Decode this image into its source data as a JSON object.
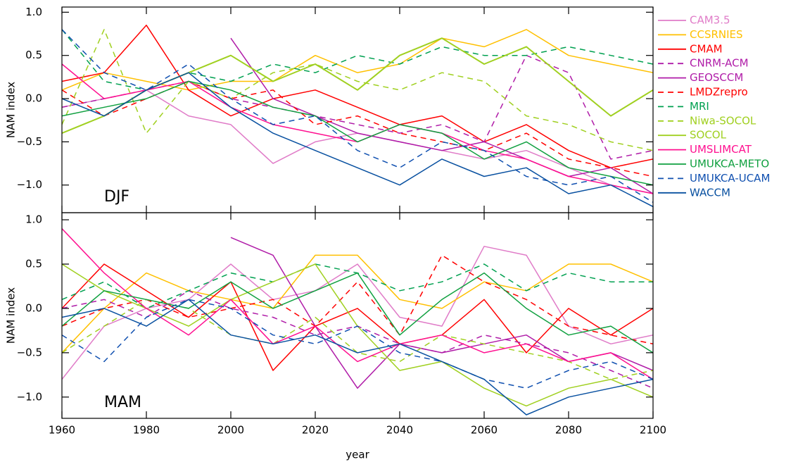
{
  "chart_data": [
    {
      "type": "line",
      "ylabel": "NAM index",
      "panel_label": "DJF",
      "xlim": [
        1960,
        2100
      ],
      "ylim": [
        -1.32,
        1.06
      ],
      "yticks": [
        {
          "value": -1,
          "label": "−1.0"
        },
        {
          "value": -0.5,
          "label": "−0.5"
        },
        {
          "value": 0,
          "label": "0.0"
        },
        {
          "value": 0.5,
          "label": "0.5"
        },
        {
          "value": 1,
          "label": "1.0"
        }
      ],
      "legend": "outside-right",
      "x": [
        1960,
        1970,
        1980,
        1990,
        2000,
        2010,
        2020,
        2030,
        2040,
        2050,
        2060,
        2070,
        2080,
        2090,
        2100
      ],
      "series": [
        {
          "name": "CAM3.5",
          "color": "#e07cc8",
          "dashed": false,
          "values": [
            -0.1,
            0.0,
            0.1,
            -0.2,
            -0.3,
            -0.75,
            -0.5,
            -0.4,
            -0.5,
            -0.6,
            -0.7,
            -0.6,
            -0.8,
            -1.0,
            -1.1
          ]
        },
        {
          "name": "CCSRNIES",
          "color": "#ffc000",
          "dashed": false,
          "values": [
            0.1,
            0.3,
            0.2,
            0.1,
            0.2,
            0.2,
            0.5,
            0.3,
            0.4,
            0.7,
            0.6,
            0.8,
            0.5,
            0.4,
            0.3
          ]
        },
        {
          "name": "CMAM",
          "color": "#ff0000",
          "dashed": false,
          "values": [
            0.2,
            0.3,
            0.85,
            0.1,
            -0.2,
            0.0,
            0.1,
            -0.1,
            -0.3,
            -0.2,
            -0.5,
            -0.3,
            -0.6,
            -0.8,
            -0.7
          ]
        },
        {
          "name": "CNRM-ACM",
          "color": "#b01ca8",
          "dashed": true,
          "values": [
            -0.1,
            0.0,
            0.1,
            0.2,
            0.0,
            -0.1,
            -0.2,
            -0.3,
            -0.4,
            -0.3,
            -0.5,
            0.5,
            0.3,
            -0.7,
            -0.6
          ]
        },
        {
          "name": "GEOSCCM",
          "color": "#b01ca8",
          "dashed": false,
          "values": [
            null,
            null,
            null,
            null,
            0.7,
            0.0,
            -0.2,
            -0.4,
            -0.5,
            -0.6,
            -0.5,
            -0.7,
            -0.9,
            -0.8,
            -1.1
          ]
        },
        {
          "name": "LMDZrepro",
          "color": "#ff0000",
          "dashed": true,
          "values": [
            0.1,
            -0.2,
            0.0,
            0.2,
            0.0,
            0.1,
            -0.3,
            -0.2,
            -0.4,
            -0.5,
            -0.6,
            -0.4,
            -0.7,
            -0.8,
            -0.9
          ]
        },
        {
          "name": "MRI",
          "color": "#00a050",
          "dashed": true,
          "values": [
            0.8,
            0.2,
            0.1,
            0.3,
            0.2,
            0.4,
            0.3,
            0.5,
            0.4,
            0.6,
            0.5,
            0.5,
            0.6,
            0.5,
            0.4
          ]
        },
        {
          "name": "Niwa-SOCOL",
          "color": "#a0d020",
          "dashed": true,
          "values": [
            -0.3,
            0.8,
            -0.4,
            0.2,
            0.0,
            0.3,
            0.4,
            0.2,
            0.1,
            0.3,
            0.2,
            -0.2,
            -0.3,
            -0.5,
            -0.6
          ]
        },
        {
          "name": "SOCOL",
          "color": "#a0d020",
          "dashed": false,
          "values": [
            -0.4,
            -0.2,
            0.1,
            0.3,
            0.5,
            0.2,
            0.4,
            0.1,
            0.5,
            0.7,
            0.4,
            0.6,
            0.2,
            -0.2,
            0.1
          ]
        },
        {
          "name": "UMSLIMCAT",
          "color": "#ff1090",
          "dashed": false,
          "values": [
            0.4,
            0.0,
            0.1,
            0.2,
            -0.1,
            -0.3,
            -0.4,
            -0.5,
            -0.3,
            -0.4,
            -0.6,
            -0.7,
            -0.9,
            -1.0,
            -1.1
          ]
        },
        {
          "name": "UMUKCA-METO",
          "color": "#10a040",
          "dashed": false,
          "values": [
            -0.2,
            -0.1,
            0.0,
            0.2,
            0.1,
            -0.1,
            -0.2,
            -0.5,
            -0.3,
            -0.4,
            -0.7,
            -0.5,
            -0.8,
            -0.9,
            -1.0
          ]
        },
        {
          "name": "UMUKCA-UCAM",
          "color": "#1050b0",
          "dashed": true,
          "values": [
            0.8,
            0.3,
            0.1,
            0.4,
            0.0,
            -0.3,
            -0.2,
            -0.6,
            -0.8,
            -0.5,
            -0.6,
            -0.9,
            -1.0,
            -0.9,
            -1.2
          ]
        },
        {
          "name": "WACCM",
          "color": "#0850a0",
          "dashed": false,
          "values": [
            0.0,
            -0.2,
            0.1,
            0.3,
            -0.1,
            -0.4,
            -0.6,
            -0.8,
            -1.0,
            -0.7,
            -0.9,
            -0.8,
            -1.1,
            -1.0,
            -1.25
          ]
        }
      ]
    },
    {
      "type": "line",
      "ylabel": "NAM index",
      "panel_label": "MAM",
      "xlabel": "year",
      "xlim": [
        1960,
        2100
      ],
      "ylim": [
        -1.24,
        1.08
      ],
      "xticks": [
        1960,
        1980,
        2000,
        2020,
        2040,
        2060,
        2080,
        2100
      ],
      "yticks": [
        {
          "value": -1,
          "label": "−1.0"
        },
        {
          "value": -0.5,
          "label": "−0.5"
        },
        {
          "value": 0,
          "label": "0.0"
        },
        {
          "value": 0.5,
          "label": "0.5"
        },
        {
          "value": 1,
          "label": "1.0"
        }
      ],
      "x": [
        1960,
        1970,
        1980,
        1990,
        2000,
        2010,
        2020,
        2030,
        2040,
        2050,
        2060,
        2070,
        2080,
        2090,
        2100
      ],
      "series": [
        {
          "color": "#e07cc8",
          "dashed": false,
          "values": [
            -0.8,
            -0.2,
            0.0,
            0.1,
            0.5,
            0.1,
            0.2,
            0.5,
            -0.1,
            -0.2,
            0.7,
            0.6,
            -0.2,
            -0.4,
            -0.3
          ]
        },
        {
          "color": "#ffc000",
          "dashed": false,
          "values": [
            -0.5,
            0.0,
            0.4,
            0.2,
            0.1,
            0.0,
            0.6,
            0.6,
            0.1,
            0.0,
            0.3,
            0.2,
            0.5,
            0.5,
            0.3
          ]
        },
        {
          "color": "#ff0000",
          "dashed": false,
          "values": [
            0.0,
            0.5,
            0.2,
            -0.1,
            0.3,
            -0.7,
            -0.2,
            0.0,
            -0.4,
            -0.3,
            0.1,
            -0.5,
            0.0,
            -0.3,
            0.0
          ]
        },
        {
          "color": "#b01ca8",
          "dashed": true,
          "values": [
            0.0,
            0.1,
            -0.1,
            0.2,
            0.0,
            -0.1,
            -0.3,
            -0.2,
            -0.4,
            -0.5,
            -0.3,
            -0.4,
            -0.5,
            -0.7,
            -0.9
          ]
        },
        {
          "color": "#b01ca8",
          "dashed": false,
          "values": [
            null,
            null,
            null,
            null,
            0.8,
            0.6,
            -0.2,
            -0.9,
            -0.4,
            -0.5,
            -0.4,
            -0.3,
            -0.6,
            -0.5,
            -0.7
          ]
        },
        {
          "color": "#ff0000",
          "dashed": true,
          "values": [
            -0.2,
            0.0,
            0.1,
            -0.1,
            0.0,
            0.1,
            -0.2,
            0.3,
            -0.3,
            0.6,
            0.3,
            0.1,
            -0.2,
            -0.3,
            -0.4
          ]
        },
        {
          "color": "#00a050",
          "dashed": true,
          "values": [
            0.1,
            0.3,
            0.0,
            0.2,
            0.4,
            0.3,
            0.5,
            0.4,
            0.2,
            0.3,
            0.5,
            0.2,
            0.4,
            0.3,
            0.3
          ]
        },
        {
          "color": "#a0d020",
          "dashed": true,
          "values": [
            -0.5,
            -0.2,
            0.1,
            0.0,
            -0.3,
            -0.4,
            -0.1,
            -0.5,
            -0.6,
            -0.3,
            -0.4,
            -0.5,
            -0.6,
            -0.8,
            -0.7
          ]
        },
        {
          "color": "#a0d020",
          "dashed": false,
          "values": [
            0.5,
            0.2,
            0.0,
            -0.2,
            0.1,
            0.3,
            0.5,
            -0.2,
            -0.7,
            -0.6,
            -0.9,
            -1.1,
            -0.9,
            -0.8,
            -1.0
          ]
        },
        {
          "color": "#ff1090",
          "dashed": false,
          "values": [
            0.9,
            0.4,
            0.0,
            -0.3,
            0.1,
            -0.4,
            -0.2,
            -0.6,
            -0.4,
            -0.3,
            -0.5,
            -0.4,
            -0.6,
            -0.5,
            -0.8
          ]
        },
        {
          "color": "#10a040",
          "dashed": false,
          "values": [
            -0.2,
            0.2,
            0.1,
            0.0,
            0.3,
            0.0,
            0.2,
            0.4,
            -0.3,
            0.1,
            0.4,
            0.0,
            -0.3,
            -0.2,
            -0.5
          ]
        },
        {
          "color": "#1050b0",
          "dashed": true,
          "values": [
            -0.3,
            -0.6,
            -0.1,
            0.1,
            0.0,
            -0.3,
            -0.4,
            -0.2,
            -0.5,
            -0.6,
            -0.8,
            -0.9,
            -0.7,
            -0.6,
            -0.8
          ]
        },
        {
          "color": "#0850a0",
          "dashed": false,
          "values": [
            -0.1,
            0.0,
            -0.2,
            0.1,
            -0.3,
            -0.4,
            -0.3,
            -0.5,
            -0.4,
            -0.6,
            -0.8,
            -1.2,
            -1.0,
            -0.9,
            -0.8
          ]
        }
      ]
    }
  ]
}
